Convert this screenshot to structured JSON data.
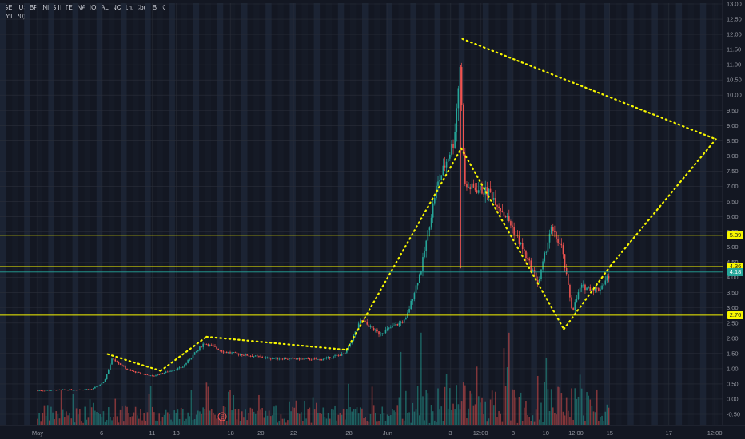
{
  "legend": {
    "symbol_line": "GENIUS BRANDS INTERNATIONAL INC, 1h, Cboe BZX",
    "volume_line": "Vol (20)"
  },
  "chart_data": {
    "type": "candlestick",
    "symbol": "GENIUS BRANDS INTERNATIONAL INC",
    "interval": "1h",
    "exchange": "Cboe BZX",
    "indicator": "Vol (20)",
    "ylim": [
      -0.8,
      13.0
    ],
    "y_ticks": [
      -0.5,
      0.0,
      0.5,
      1.0,
      1.5,
      2.0,
      2.5,
      3.0,
      3.5,
      4.0,
      4.5,
      5.0,
      5.5,
      6.0,
      6.5,
      7.0,
      7.5,
      8.0,
      8.5,
      9.0,
      9.5,
      10.0,
      10.5,
      11.0,
      11.5,
      12.0,
      12.5,
      13.0
    ],
    "y_tick_labels": [
      "-0.50",
      "0.00",
      "0.50",
      "1.00",
      "1.50",
      "2.00",
      "2.50",
      "3.00",
      "3.50",
      "4.00",
      "4.50",
      "5.00",
      "5.50",
      "6.00",
      "6.50",
      "7.00",
      "7.50",
      "8.00",
      "8.50",
      "9.00",
      "9.50",
      "10.00",
      "10.50",
      "11.00",
      "11.50",
      "12.00",
      "12.50",
      "13.00"
    ],
    "x_tick_labels": [
      "May",
      "6",
      "11",
      "13",
      "18",
      "20",
      "22",
      "28",
      "Jun",
      "3",
      "12:00",
      "8",
      "10",
      "12:00",
      "15",
      "17",
      "12:00",
      "22"
    ],
    "x_ticks_day": [
      0,
      5.3,
      9.5,
      11.5,
      16,
      18.5,
      21.2,
      25.8,
      29,
      34.2,
      36.7,
      39.4,
      42.1,
      44.6,
      47.4,
      52.3,
      56.1,
      59.1
    ],
    "horizontal_levels": [
      {
        "value": 5.39,
        "label": "5.39",
        "color": "#f7f600"
      },
      {
        "value": 4.36,
        "label": "4.36",
        "color": "#f7f600"
      },
      {
        "value": 4.18,
        "label": "4.18",
        "color": "#26a69a"
      },
      {
        "value": 2.76,
        "label": "2.76",
        "color": "#f7f600"
      }
    ],
    "price_path_key_points": [
      {
        "day": 0,
        "price": 0.28
      },
      {
        "day": 4.5,
        "price": 0.33
      },
      {
        "day": 5.5,
        "price": 0.55
      },
      {
        "day": 6.2,
        "price": 1.35
      },
      {
        "day": 7.5,
        "price": 0.95
      },
      {
        "day": 9.5,
        "price": 0.75
      },
      {
        "day": 12.0,
        "price": 1.05
      },
      {
        "day": 13.8,
        "price": 1.85
      },
      {
        "day": 15.5,
        "price": 1.55
      },
      {
        "day": 19.0,
        "price": 1.35
      },
      {
        "day": 23.5,
        "price": 1.3
      },
      {
        "day": 25.5,
        "price": 1.5
      },
      {
        "day": 26.8,
        "price": 2.6
      },
      {
        "day": 28.3,
        "price": 2.15
      },
      {
        "day": 30.5,
        "price": 2.6
      },
      {
        "day": 31.8,
        "price": 4.3
      },
      {
        "day": 33.0,
        "price": 6.9
      },
      {
        "day": 34.5,
        "price": 8.5
      },
      {
        "day": 35.0,
        "price": 11.0
      },
      {
        "day": 35.4,
        "price": 7.0
      },
      {
        "day": 37.5,
        "price": 6.8
      },
      {
        "day": 39.0,
        "price": 5.9
      },
      {
        "day": 40.0,
        "price": 5.1
      },
      {
        "day": 41.5,
        "price": 3.8
      },
      {
        "day": 42.5,
        "price": 5.6
      },
      {
        "day": 43.4,
        "price": 5.0
      },
      {
        "day": 44.3,
        "price": 2.9
      },
      {
        "day": 45.0,
        "price": 3.7
      },
      {
        "day": 46.5,
        "price": 3.6
      },
      {
        "day": 47.4,
        "price": 4.1
      }
    ],
    "pattern_lines": {
      "color": "#f7f600",
      "style": "dotted",
      "segments": [
        [
          {
            "day": 5.8,
            "price": 1.48
          },
          {
            "day": 10.2,
            "price": 0.93
          }
        ],
        [
          {
            "day": 10.2,
            "price": 0.93
          },
          {
            "day": 14.0,
            "price": 2.05
          }
        ],
        [
          {
            "day": 14.0,
            "price": 2.05
          },
          {
            "day": 25.6,
            "price": 1.62
          }
        ],
        [
          {
            "day": 25.6,
            "price": 1.62
          },
          {
            "day": 35.1,
            "price": 8.25
          }
        ],
        [
          {
            "day": 35.2,
            "price": 11.85
          },
          {
            "day": 56.2,
            "price": 8.55
          }
        ],
        [
          {
            "day": 56.2,
            "price": 8.55
          },
          {
            "day": 47.5,
            "price": 4.4
          }
        ],
        [
          {
            "day": 35.1,
            "price": 8.25
          },
          {
            "day": 43.6,
            "price": 2.3
          }
        ],
        [
          {
            "day": 43.6,
            "price": 2.3
          },
          {
            "day": 47.5,
            "price": 4.4
          }
        ]
      ]
    },
    "colors": {
      "up": "#26a69a",
      "down": "#ef5350",
      "grid": "#2a2e39",
      "text": "#9598a1",
      "background": "#131722"
    },
    "grid": true,
    "legend_position": "top-left",
    "event_marker": {
      "label": "E",
      "day": 15.3
    }
  }
}
